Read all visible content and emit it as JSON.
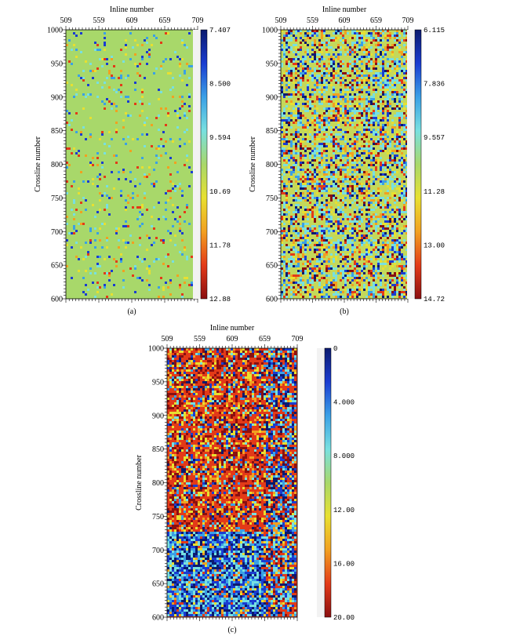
{
  "panels": [
    {
      "caption": "(a)",
      "top_axis_label": "Inline number",
      "left_axis_label": "Crossline number",
      "inline_ticks": [
        "509",
        "559",
        "609",
        "659",
        "709"
      ],
      "crossline_ticks": [
        "1000",
        "950",
        "900",
        "850",
        "800",
        "750",
        "700",
        "650",
        "600"
      ],
      "colorbar_labels": [
        "7.407",
        "8.500",
        "9.594",
        "10.69",
        "11.78",
        "12.88"
      ],
      "texture": "sparse"
    },
    {
      "caption": "(b)",
      "top_axis_label": "Inline number",
      "left_axis_label": "Crossline number",
      "inline_ticks": [
        "509",
        "559",
        "609",
        "659",
        "709"
      ],
      "crossline_ticks": [
        "1000",
        "950",
        "900",
        "850",
        "800",
        "750",
        "700",
        "650",
        "600"
      ],
      "colorbar_labels": [
        "6.115",
        "7.836",
        "9.557",
        "11.28",
        "13.00",
        "14.72"
      ],
      "texture": "medium"
    },
    {
      "caption": "(c)",
      "top_axis_label": "Inline number",
      "left_axis_label": "Crossline number",
      "inline_ticks": [
        "509",
        "559",
        "609",
        "659",
        "709"
      ],
      "crossline_ticks": [
        "1000",
        "950",
        "900",
        "850",
        "800",
        "750",
        "700",
        "650",
        "600"
      ],
      "colorbar_labels": [
        "0",
        "4.000",
        "8.000",
        "12.00",
        "16.00",
        "20.00"
      ],
      "texture": "dense"
    }
  ],
  "colormap": [
    "#0b1a6e",
    "#1a3cd1",
    "#3aa0e6",
    "#78e0e0",
    "#a8d86a",
    "#e8e030",
    "#f2a020",
    "#e33a18",
    "#8a0f10"
  ]
}
